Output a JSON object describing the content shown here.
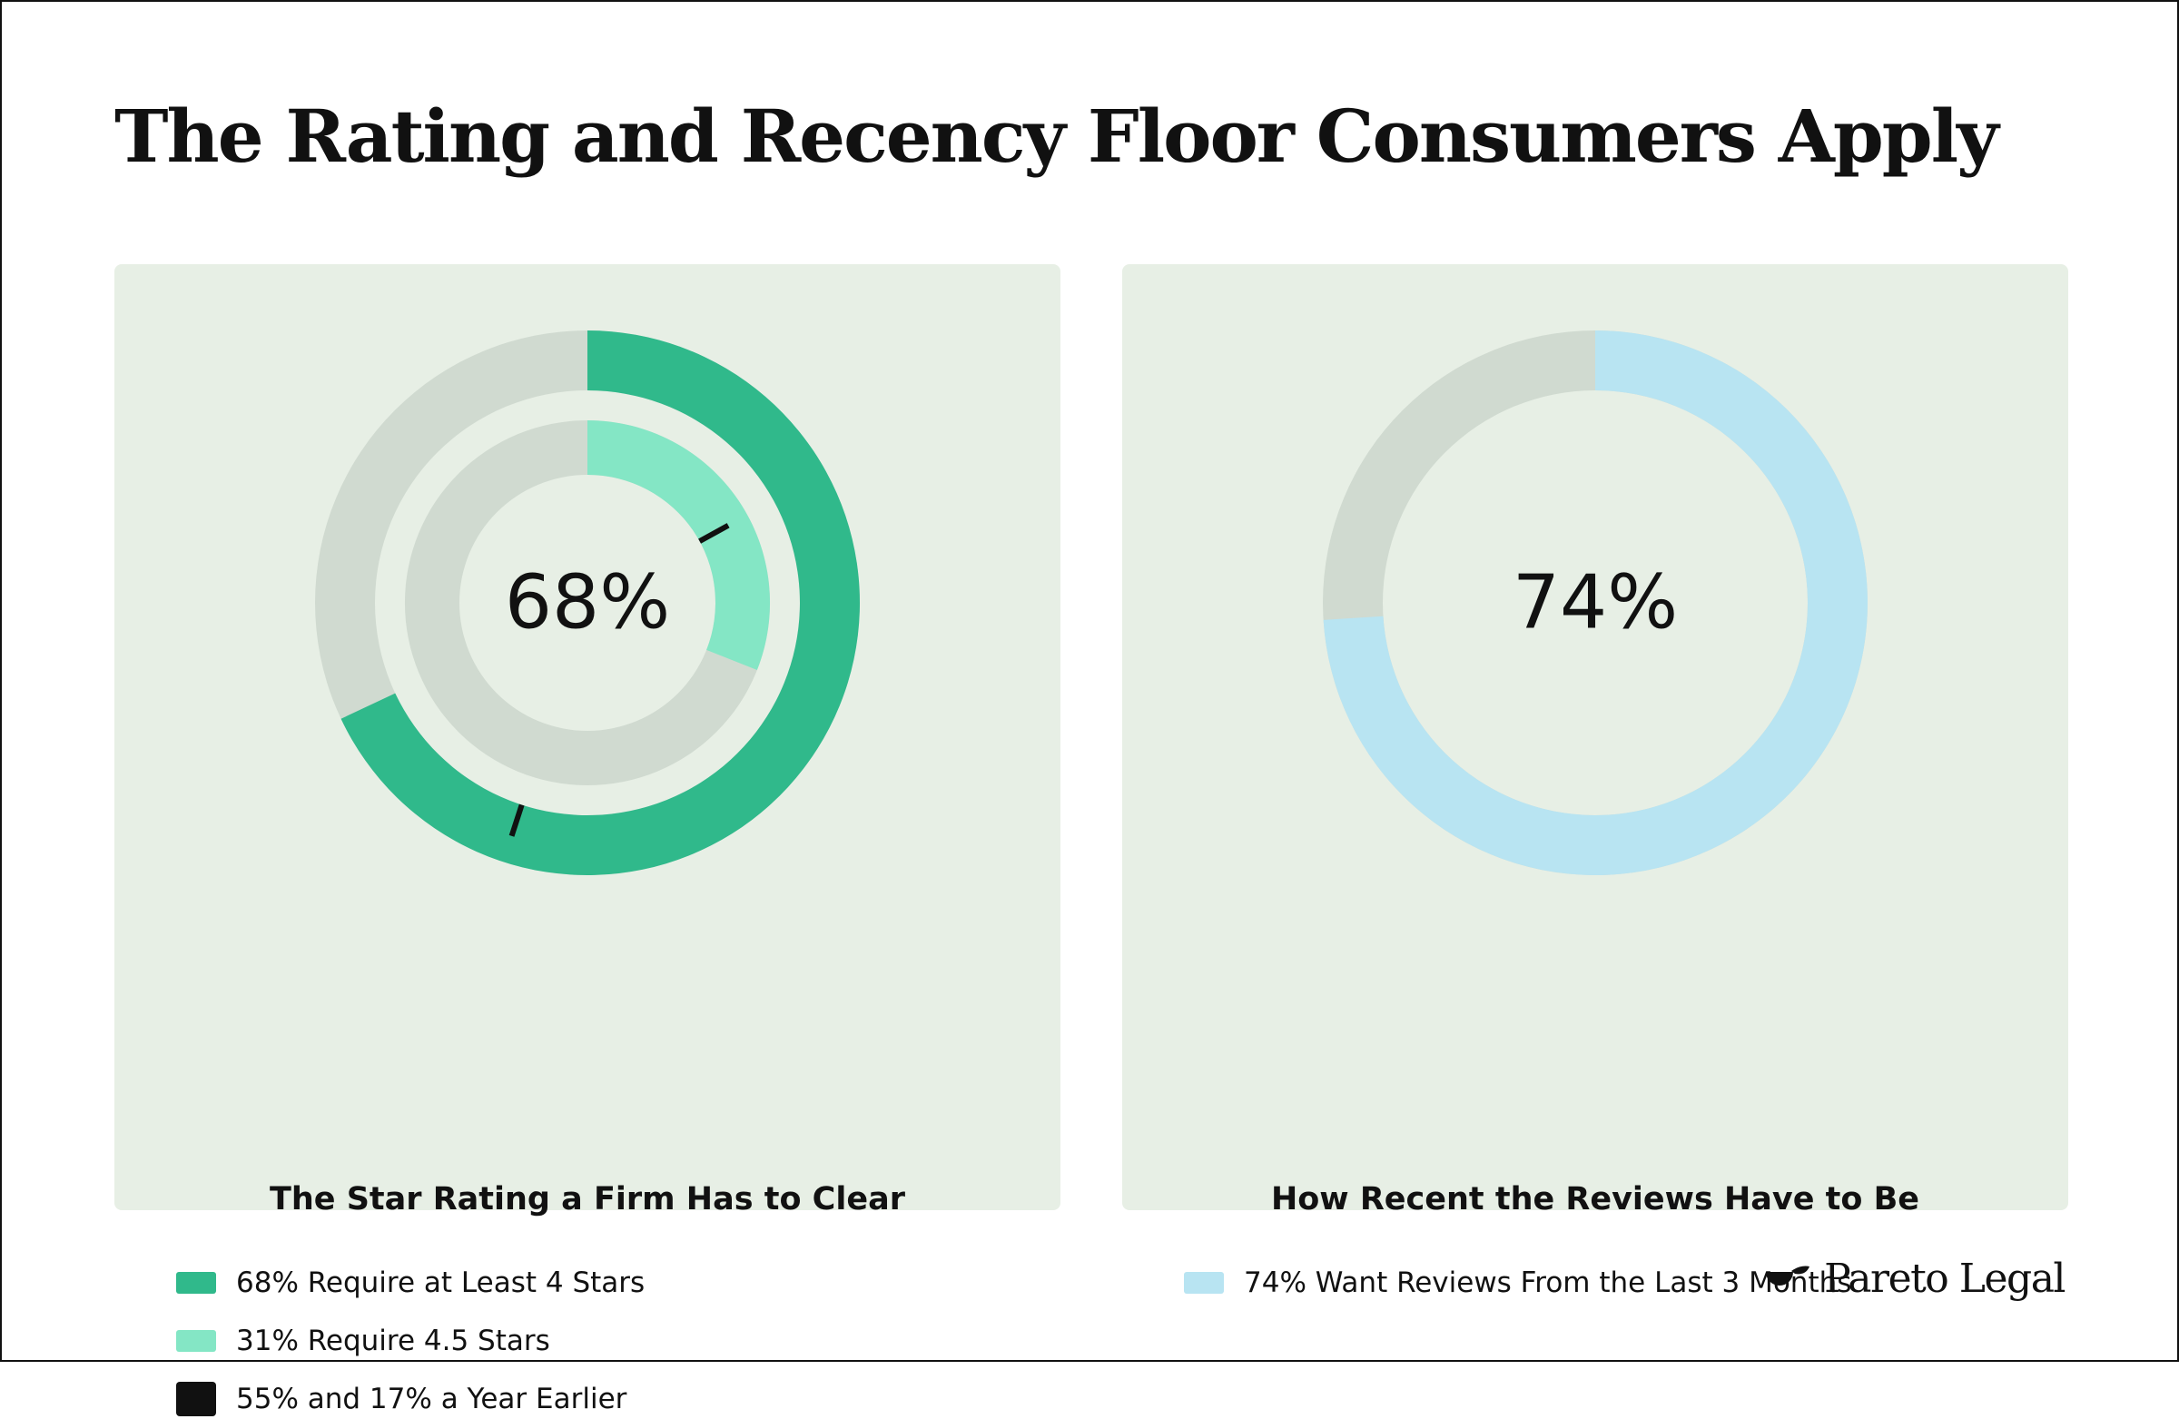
{
  "header": {
    "title": "The Rating and Recency Floor Consumers Apply"
  },
  "brand": {
    "name": "Pareto Legal"
  },
  "colors": {
    "track": "#d0dad0",
    "panel_bg": "#e7efe5",
    "dark_green": "#30b98b",
    "light_green": "#84e6c5",
    "light_blue": "#b8e4f2",
    "marker": "#111111"
  },
  "chart_data": [
    {
      "type": "donut",
      "title": "The Star Rating a Firm Has to Clear",
      "center_label": "68%",
      "rings": [
        {
          "name": "68% Require at Least 4 Stars",
          "value": 68,
          "prior_value": 55,
          "color": "#30b98b"
        },
        {
          "name": "31% Require 4.5 Stars",
          "value": 31,
          "prior_value": 17,
          "color": "#84e6c5"
        }
      ],
      "marker": {
        "name": "55% and 17% a Year Earlier",
        "color": "#111111"
      },
      "scale": [
        0,
        100
      ]
    },
    {
      "type": "donut",
      "title": "How Recent the Reviews Have to Be",
      "center_label": "74%",
      "rings": [
        {
          "name": "74% Want Reviews From the Last 3 Months",
          "value": 74,
          "color": "#b8e4f2"
        }
      ],
      "scale": [
        0,
        100
      ]
    }
  ]
}
